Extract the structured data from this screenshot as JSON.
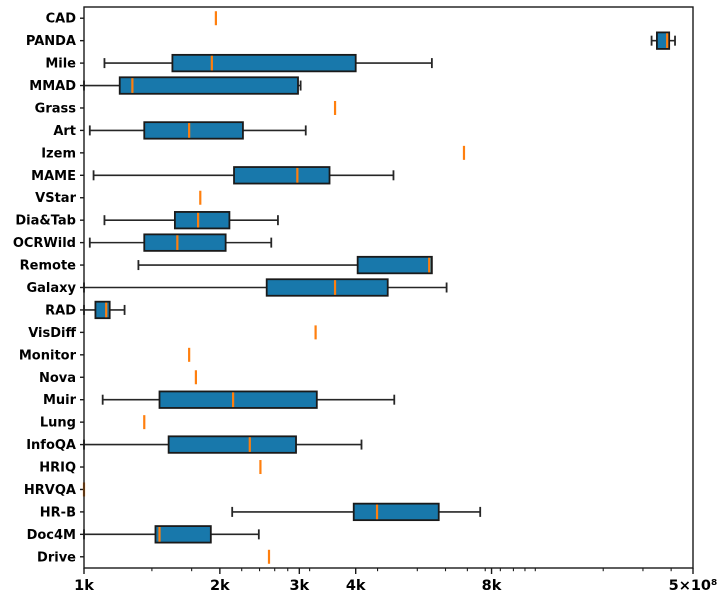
{
  "chart_data": {
    "type": "box",
    "orientation": "horizontal",
    "title": "",
    "xlabel": "",
    "ylabel": "",
    "x_axis": {
      "scale": "log",
      "min_k": 1,
      "max_k": 22.36,
      "major_ticks": [
        {
          "k": 1.0,
          "label": "1k"
        },
        {
          "k": 2.0,
          "label": "2k"
        },
        {
          "k": 3.0,
          "label": "3k"
        },
        {
          "k": 4.0,
          "label": "4k"
        },
        {
          "k": 8.0,
          "label": "8k"
        },
        {
          "k": 22.36,
          "label": "5×10⁸"
        }
      ],
      "minor_ticks_k": [
        1.414,
        1.732,
        2.236,
        2.449,
        2.646,
        2.828,
        3.162,
        4.472,
        5.477,
        6.325,
        7.071,
        7.746,
        8.367,
        8.944,
        9.487,
        10.0,
        14.142,
        17.321,
        20.0
      ]
    },
    "categories": [
      "CAD",
      "PANDA",
      "Mile",
      "MMAD",
      "Grass",
      "Art",
      "Izem",
      "MAME",
      "VStar",
      "Dia&Tab",
      "OCRWild",
      "Remote",
      "Galaxy",
      "RAD",
      "VisDiff",
      "Monitor",
      "Nova",
      "Muir",
      "Lung",
      "InfoQA",
      "HRIQ",
      "HRVQA",
      "HR-B",
      "Doc4M",
      "Drive"
    ],
    "stats": [
      {
        "category": "CAD",
        "med": 1.96
      },
      {
        "category": "PANDA",
        "whislo": 18.1,
        "q1": 18.6,
        "med": 19.6,
        "q3": 19.8,
        "whishi": 20.4
      },
      {
        "category": "Mile",
        "whislo": 1.11,
        "q1": 1.57,
        "med": 1.92,
        "q3": 4.0,
        "whishi": 5.9
      },
      {
        "category": "MMAD",
        "whislo": 1.0,
        "q1": 1.2,
        "med": 1.28,
        "q3": 2.98,
        "whishi": 3.02
      },
      {
        "category": "Grass",
        "med": 3.6
      },
      {
        "category": "Art",
        "whislo": 1.03,
        "q1": 1.36,
        "med": 1.71,
        "q3": 2.25,
        "whishi": 3.1
      },
      {
        "category": "Izem",
        "med": 6.95
      },
      {
        "category": "MAME",
        "whislo": 1.05,
        "q1": 2.15,
        "med": 2.97,
        "q3": 3.5,
        "whishi": 4.85
      },
      {
        "category": "VStar",
        "med": 1.81
      },
      {
        "category": "Dia&Tab",
        "whislo": 1.11,
        "q1": 1.59,
        "med": 1.79,
        "q3": 2.1,
        "whishi": 2.69
      },
      {
        "category": "OCRWild",
        "whislo": 1.03,
        "q1": 1.36,
        "med": 1.61,
        "q3": 2.06,
        "whishi": 2.6
      },
      {
        "category": "Remote",
        "whislo": 1.32,
        "q1": 4.04,
        "med": 5.82,
        "q3": 5.9,
        "whishi": 5.9
      },
      {
        "category": "Galaxy",
        "whislo": 1.0,
        "q1": 2.54,
        "med": 3.6,
        "q3": 4.71,
        "whishi": 6.36
      },
      {
        "category": "RAD",
        "whislo": 1.0,
        "q1": 1.06,
        "med": 1.12,
        "q3": 1.14,
        "whishi": 1.23
      },
      {
        "category": "VisDiff",
        "med": 3.26
      },
      {
        "category": "Monitor",
        "med": 1.71
      },
      {
        "category": "Nova",
        "med": 1.77
      },
      {
        "category": "Muir",
        "whislo": 1.1,
        "q1": 1.47,
        "med": 2.14,
        "q3": 3.28,
        "whishi": 4.87
      },
      {
        "category": "Lung",
        "med": 1.36
      },
      {
        "category": "InfoQA",
        "whislo": 1.0,
        "q1": 1.54,
        "med": 2.33,
        "q3": 2.95,
        "whishi": 4.12
      },
      {
        "category": "HRIQ",
        "med": 2.46
      },
      {
        "category": "HRVQA",
        "med": 1.0
      },
      {
        "category": "HR-B",
        "whislo": 2.13,
        "q1": 3.96,
        "med": 4.46,
        "q3": 6.11,
        "whishi": 7.55
      },
      {
        "category": "Doc4M",
        "whislo": 1.0,
        "q1": 1.44,
        "med": 1.47,
        "q3": 1.91,
        "whishi": 2.44
      },
      {
        "category": "Drive",
        "med": 2.57
      }
    ],
    "colors": {
      "box_fill": "#1878ab",
      "box_edge": "#1a1a1a",
      "whisker": "#262626",
      "median": "#ff7f0e",
      "single_tick": "#ff7f0e",
      "axis": "#1a1a1a",
      "text": "#000000",
      "background": "#ffffff"
    },
    "grid": false,
    "legend": null
  }
}
